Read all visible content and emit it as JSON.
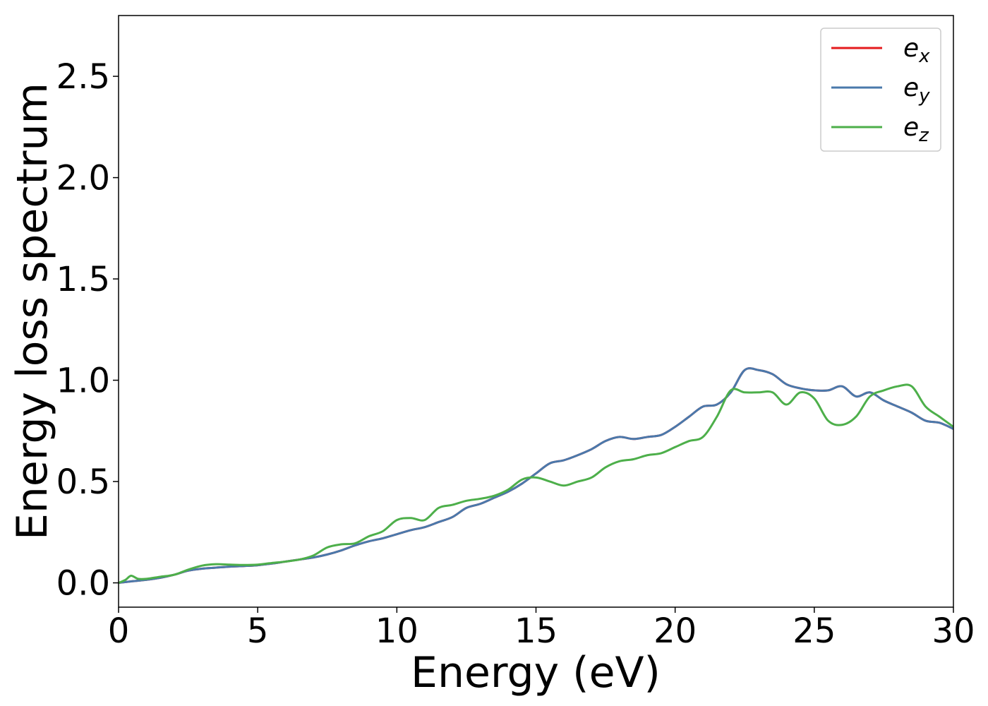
{
  "chart_data": {
    "type": "line",
    "xlabel": "Energy (eV)",
    "ylabel": "Energy loss spectrum",
    "xlim": [
      0,
      30
    ],
    "ylim": [
      -0.12,
      2.8
    ],
    "xticks": [
      "0",
      "5",
      "10",
      "15",
      "20",
      "25",
      "30"
    ],
    "yticks": [
      "0.0",
      "0.5",
      "1.0",
      "1.5",
      "2.0",
      "2.5"
    ],
    "grid": false,
    "legend_position": "top-right",
    "series": [
      {
        "name": "e_x",
        "legend_base": "e",
        "legend_sub": "x",
        "color": "#e41a1c",
        "x": [
          0,
          0.5,
          1,
          1.5,
          2,
          2.5,
          3,
          3.5,
          4,
          4.5,
          5,
          5.5,
          6,
          6.5,
          7,
          7.5,
          8,
          8.5,
          9,
          9.5,
          10,
          10.5,
          11,
          11.5,
          12,
          12.5,
          13,
          13.5,
          14,
          14.5,
          15,
          15.5,
          16,
          16.5,
          17,
          17.5,
          18,
          18.5,
          19,
          19.5,
          20,
          20.5,
          21,
          21.5,
          22,
          22.5,
          23,
          23.5,
          24,
          24.5,
          25,
          25.5,
          26,
          26.5,
          27,
          27.5,
          28,
          28.5,
          29,
          29.5,
          30
        ],
        "y": [
          0.0,
          0.008,
          0.015,
          0.025,
          0.04,
          0.06,
          0.07,
          0.075,
          0.08,
          0.083,
          0.087,
          0.095,
          0.105,
          0.115,
          0.125,
          0.14,
          0.16,
          0.185,
          0.205,
          0.22,
          0.24,
          0.26,
          0.275,
          0.3,
          0.325,
          0.37,
          0.39,
          0.42,
          0.45,
          0.49,
          0.54,
          0.59,
          0.605,
          0.63,
          0.66,
          0.7,
          0.72,
          0.71,
          0.72,
          0.73,
          0.77,
          0.82,
          0.87,
          0.88,
          0.94,
          1.05,
          1.05,
          1.03,
          0.98,
          0.96,
          0.95,
          0.95,
          0.97,
          0.92,
          0.94,
          0.9,
          0.87,
          0.84,
          0.8,
          0.79,
          0.76
        ]
      },
      {
        "name": "e_y",
        "legend_base": "e",
        "legend_sub": "y",
        "color": "#4a79ab",
        "x": [
          0,
          0.5,
          1,
          1.5,
          2,
          2.5,
          3,
          3.5,
          4,
          4.5,
          5,
          5.5,
          6,
          6.5,
          7,
          7.5,
          8,
          8.5,
          9,
          9.5,
          10,
          10.5,
          11,
          11.5,
          12,
          12.5,
          13,
          13.5,
          14,
          14.5,
          15,
          15.5,
          16,
          16.5,
          17,
          17.5,
          18,
          18.5,
          19,
          19.5,
          20,
          20.5,
          21,
          21.5,
          22,
          22.5,
          23,
          23.5,
          24,
          24.5,
          25,
          25.5,
          26,
          26.5,
          27,
          27.5,
          28,
          28.5,
          29,
          29.5,
          30
        ],
        "y": [
          0.0,
          0.008,
          0.015,
          0.025,
          0.04,
          0.06,
          0.07,
          0.075,
          0.08,
          0.083,
          0.087,
          0.095,
          0.105,
          0.115,
          0.125,
          0.14,
          0.16,
          0.185,
          0.205,
          0.22,
          0.24,
          0.26,
          0.275,
          0.3,
          0.325,
          0.37,
          0.39,
          0.42,
          0.45,
          0.49,
          0.54,
          0.59,
          0.605,
          0.63,
          0.66,
          0.7,
          0.72,
          0.71,
          0.72,
          0.73,
          0.77,
          0.82,
          0.87,
          0.88,
          0.94,
          1.05,
          1.05,
          1.03,
          0.98,
          0.96,
          0.95,
          0.95,
          0.97,
          0.92,
          0.94,
          0.9,
          0.87,
          0.84,
          0.8,
          0.79,
          0.76
        ]
      },
      {
        "name": "e_z",
        "legend_base": "e",
        "legend_sub": "z",
        "color": "#4daf4a",
        "x": [
          0,
          0.25,
          0.45,
          0.7,
          1,
          1.5,
          2,
          2.5,
          3,
          3.5,
          4,
          4.5,
          5,
          5.5,
          6,
          6.5,
          7,
          7.5,
          8,
          8.5,
          9,
          9.5,
          10,
          10.5,
          11,
          11.5,
          12,
          12.5,
          13,
          13.5,
          14,
          14.5,
          15,
          15.5,
          16,
          16.5,
          17,
          17.5,
          18,
          18.5,
          19,
          19.5,
          20,
          20.5,
          21,
          21.5,
          22,
          22.5,
          23,
          23.5,
          24,
          24.5,
          25,
          25.5,
          26,
          26.5,
          27,
          27.5,
          28,
          28.5,
          29,
          29.5,
          30
        ],
        "y": [
          0.0,
          0.015,
          0.035,
          0.02,
          0.02,
          0.03,
          0.04,
          0.065,
          0.085,
          0.092,
          0.09,
          0.088,
          0.09,
          0.098,
          0.105,
          0.115,
          0.135,
          0.175,
          0.19,
          0.195,
          0.23,
          0.255,
          0.31,
          0.32,
          0.31,
          0.37,
          0.385,
          0.405,
          0.415,
          0.43,
          0.46,
          0.51,
          0.52,
          0.5,
          0.48,
          0.5,
          0.52,
          0.57,
          0.6,
          0.61,
          0.63,
          0.64,
          0.67,
          0.7,
          0.72,
          0.82,
          0.95,
          0.94,
          0.94,
          0.94,
          0.88,
          0.94,
          0.91,
          0.8,
          0.78,
          0.82,
          0.92,
          0.95,
          0.97,
          0.97,
          0.87,
          0.82,
          0.77
        ]
      }
    ]
  }
}
